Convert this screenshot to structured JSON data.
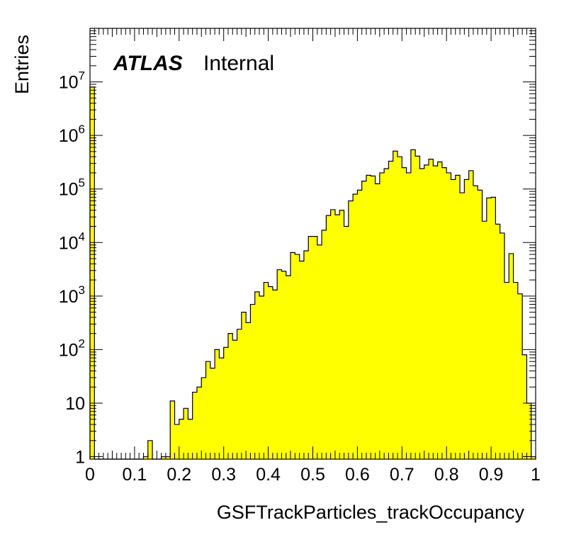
{
  "chart_data": {
    "type": "bar",
    "xlabel": "GSFTrackParticles_trackOccupancy",
    "ylabel": "Entries",
    "annotation": {
      "atlas": "ATLAS",
      "status": "Internal"
    },
    "xlim": [
      0,
      1
    ],
    "ylim": [
      0.9,
      100000000
    ],
    "yscale": "log",
    "fill_color": "#ffff00",
    "line_color": "#000000",
    "x_ticks": [
      {
        "v": 0,
        "label": "0"
      },
      {
        "v": 0.1,
        "label": "0.1"
      },
      {
        "v": 0.2,
        "label": "0.2"
      },
      {
        "v": 0.3,
        "label": "0.3"
      },
      {
        "v": 0.4,
        "label": "0.4"
      },
      {
        "v": 0.5,
        "label": "0.5"
      },
      {
        "v": 0.6,
        "label": "0.6"
      },
      {
        "v": 0.7,
        "label": "0.7"
      },
      {
        "v": 0.8,
        "label": "0.8"
      },
      {
        "v": 0.9,
        "label": "0.9"
      },
      {
        "v": 1,
        "label": "1"
      }
    ],
    "y_ticks": [
      {
        "v": 1,
        "base": "1",
        "exp": ""
      },
      {
        "v": 10,
        "base": "10",
        "exp": ""
      },
      {
        "v": 100,
        "base": "10",
        "exp": "2"
      },
      {
        "v": 1000,
        "base": "10",
        "exp": "3"
      },
      {
        "v": 10000,
        "base": "10",
        "exp": "4"
      },
      {
        "v": 100000,
        "base": "10",
        "exp": "5"
      },
      {
        "v": 1000000,
        "base": "10",
        "exp": "6"
      },
      {
        "v": 10000000,
        "base": "10",
        "exp": "7"
      }
    ],
    "bin_width": 0.01,
    "bins": [
      [
        0.0,
        8000000
      ],
      [
        0.12,
        1
      ],
      [
        0.13,
        2
      ],
      [
        0.16,
        1
      ],
      [
        0.17,
        1
      ],
      [
        0.18,
        11
      ],
      [
        0.19,
        4
      ],
      [
        0.2,
        5
      ],
      [
        0.21,
        8
      ],
      [
        0.22,
        5
      ],
      [
        0.23,
        16
      ],
      [
        0.24,
        20
      ],
      [
        0.25,
        30
      ],
      [
        0.26,
        60
      ],
      [
        0.27,
        45
      ],
      [
        0.28,
        100
      ],
      [
        0.29,
        70
      ],
      [
        0.3,
        110
      ],
      [
        0.31,
        200
      ],
      [
        0.32,
        150
      ],
      [
        0.33,
        240
      ],
      [
        0.34,
        500
      ],
      [
        0.35,
        320
      ],
      [
        0.36,
        700
      ],
      [
        0.37,
        1200
      ],
      [
        0.38,
        1000
      ],
      [
        0.39,
        1800
      ],
      [
        0.4,
        1500
      ],
      [
        0.41,
        1300
      ],
      [
        0.42,
        3100
      ],
      [
        0.43,
        2900
      ],
      [
        0.44,
        2400
      ],
      [
        0.45,
        6500
      ],
      [
        0.46,
        6000
      ],
      [
        0.47,
        4500
      ],
      [
        0.48,
        7000
      ],
      [
        0.49,
        13000
      ],
      [
        0.5,
        13000
      ],
      [
        0.51,
        9000
      ],
      [
        0.52,
        17000
      ],
      [
        0.53,
        32000
      ],
      [
        0.54,
        41000
      ],
      [
        0.55,
        33000
      ],
      [
        0.56,
        40000
      ],
      [
        0.57,
        20000
      ],
      [
        0.58,
        60000
      ],
      [
        0.59,
        80000
      ],
      [
        0.6,
        95000
      ],
      [
        0.61,
        140000
      ],
      [
        0.62,
        180000
      ],
      [
        0.63,
        175000
      ],
      [
        0.64,
        125000
      ],
      [
        0.65,
        200000
      ],
      [
        0.66,
        240000
      ],
      [
        0.67,
        330000
      ],
      [
        0.68,
        510000
      ],
      [
        0.69,
        400000
      ],
      [
        0.7,
        250000
      ],
      [
        0.71,
        200000
      ],
      [
        0.72,
        540000
      ],
      [
        0.73,
        410000
      ],
      [
        0.74,
        240000
      ],
      [
        0.75,
        280000
      ],
      [
        0.76,
        360000
      ],
      [
        0.77,
        270000
      ],
      [
        0.78,
        320000
      ],
      [
        0.79,
        250000
      ],
      [
        0.8,
        200000
      ],
      [
        0.81,
        150000
      ],
      [
        0.82,
        180000
      ],
      [
        0.83,
        85000
      ],
      [
        0.84,
        150000
      ],
      [
        0.85,
        220000
      ],
      [
        0.86,
        115000
      ],
      [
        0.87,
        95000
      ],
      [
        0.88,
        25000
      ],
      [
        0.89,
        68000
      ],
      [
        0.9,
        70000
      ],
      [
        0.91,
        22000
      ],
      [
        0.92,
        15000
      ],
      [
        0.93,
        1800
      ],
      [
        0.94,
        6200
      ],
      [
        0.95,
        1800
      ],
      [
        0.96,
        1100
      ],
      [
        0.97,
        80
      ],
      [
        0.98,
        10
      ],
      [
        0.99,
        1
      ]
    ]
  }
}
